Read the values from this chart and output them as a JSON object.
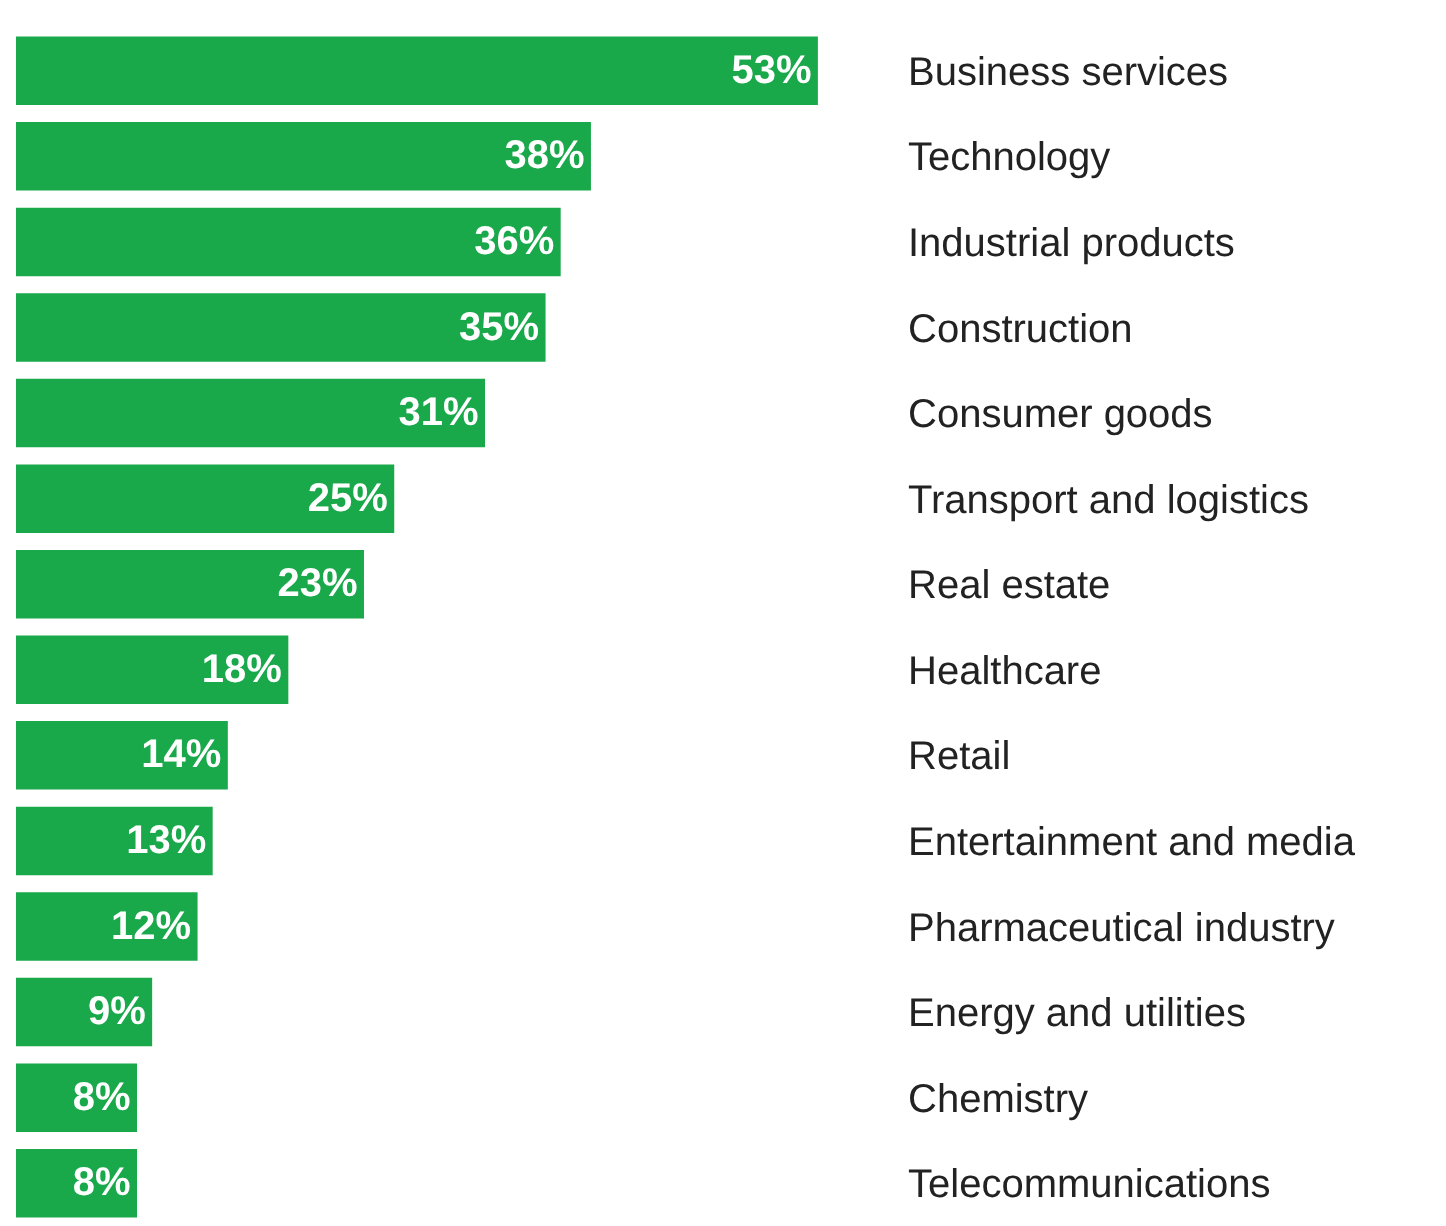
{
  "chart_data": {
    "type": "bar",
    "orientation": "horizontal",
    "categories": [
      "Business services",
      "Technology",
      "Industrial products",
      "Construction",
      "Consumer goods",
      "Transport and logistics",
      "Real estate",
      "Healthcare",
      "Retail",
      "Entertainment and media",
      "Pharmaceutical industry",
      "Energy and utilities",
      "Chemistry",
      "Telecommunications"
    ],
    "values": [
      53,
      38,
      36,
      35,
      31,
      25,
      23,
      18,
      14,
      13,
      12,
      9,
      8,
      8
    ],
    "value_labels": [
      "53%",
      "38%",
      "36%",
      "35%",
      "31%",
      "25%",
      "23%",
      "18%",
      "14%",
      "13%",
      "12%",
      "9%",
      "8%",
      "8%"
    ],
    "color": "#19a84a"
  }
}
